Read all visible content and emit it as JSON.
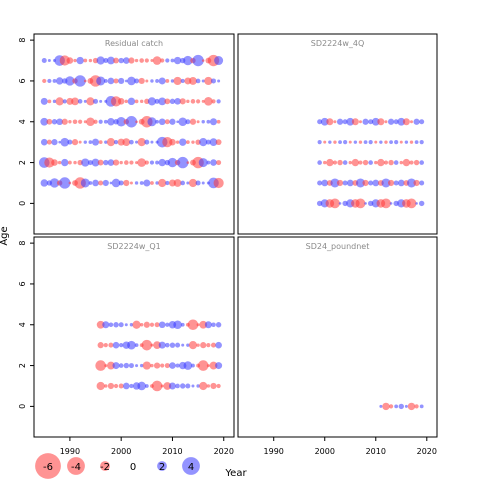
{
  "chart_data": {
    "type": "scatter",
    "xlabel": "Year",
    "ylabel": "Age",
    "xlim": [
      1983,
      2022
    ],
    "ylim": [
      -1.5,
      8.3
    ],
    "x_ticks": [
      1990,
      2000,
      2010,
      2020
    ],
    "y_ticks": [
      0,
      2,
      4,
      6,
      8
    ],
    "colors": {
      "negative": "#ff3b3b",
      "positive": "#3b3bff"
    },
    "bubble_alpha": 0.55,
    "legend": {
      "values": [
        -6,
        -4,
        -2,
        0,
        2,
        4
      ],
      "labels": [
        "-6",
        "-4",
        "-2",
        "0",
        "2",
        "4"
      ],
      "placement": "bottom-left"
    },
    "panels": [
      {
        "title": "Residual catch",
        "years": [
          1985,
          2019
        ],
        "ages": [
          1,
          2,
          3,
          4,
          5,
          6,
          7
        ],
        "residual_pattern": [
          [
            1.4,
            -0.9,
            0.6,
            1.8,
            -0.4,
            0.3,
            -1.1
          ],
          [
            -0.7,
            2.2,
            -0.3,
            0.9,
            1.6,
            -1.3,
            0.5
          ],
          [
            0.8,
            -1.5,
            1.2,
            -0.6,
            -2.1,
            0.4,
            1.9
          ],
          [
            -1.2,
            0.5,
            -0.9,
            1.5,
            0.7,
            -0.8,
            -0.3
          ],
          [
            0.3,
            1.1,
            -1.7,
            -0.4,
            1.3,
            2.4,
            -1.0
          ],
          [
            -0.5,
            -0.2,
            0.9,
            -1.6,
            0.2,
            -0.6,
            1.4
          ],
          [
            1.7,
            0.6,
            -0.5,
            0.4,
            -1.0,
            1.2,
            0.8
          ],
          [
            -2.4,
            -1.1,
            0.3,
            0.8,
            0.5,
            -0.4,
            -1.6
          ]
        ]
      },
      {
        "title": "SD2224w_4Q",
        "years": [
          1999,
          2019
        ],
        "ages": [
          0,
          1,
          2,
          3,
          4
        ],
        "residual_pattern": [
          [
            0.9,
            -0.6,
            1.5,
            -1.1,
            0.4
          ],
          [
            -1.3,
            0.8,
            -0.4,
            1.6,
            -0.9
          ],
          [
            0.5,
            -1.7,
            0.7,
            -0.3,
            1.2
          ],
          [
            -0.4,
            1.1,
            -1.0,
            0.6,
            -2.0
          ],
          [
            1.8,
            -0.3,
            0.2,
            -1.4,
            0.8
          ]
        ]
      },
      {
        "title": "SD2224w_Q1",
        "years": [
          1996,
          2019
        ],
        "ages": [
          1,
          2,
          3,
          4
        ],
        "residual_pattern": [
          [
            -1.6,
            0.7,
            -0.5,
            1.2
          ],
          [
            0.9,
            -2.2,
            0.6,
            -0.4
          ],
          [
            -0.3,
            1.4,
            -1.1,
            0.8
          ],
          [
            1.7,
            -0.6,
            0.3,
            -1.5
          ],
          [
            -0.8,
            0.4,
            1.3,
            0.5
          ]
        ]
      },
      {
        "title": "SD24_poundnet",
        "years": [
          2011,
          2019
        ],
        "ages": [
          0
        ],
        "residual_pattern": [
          [
            0.3,
            -0.6,
            0.9,
            -1.4,
            0.5
          ]
        ]
      }
    ]
  }
}
